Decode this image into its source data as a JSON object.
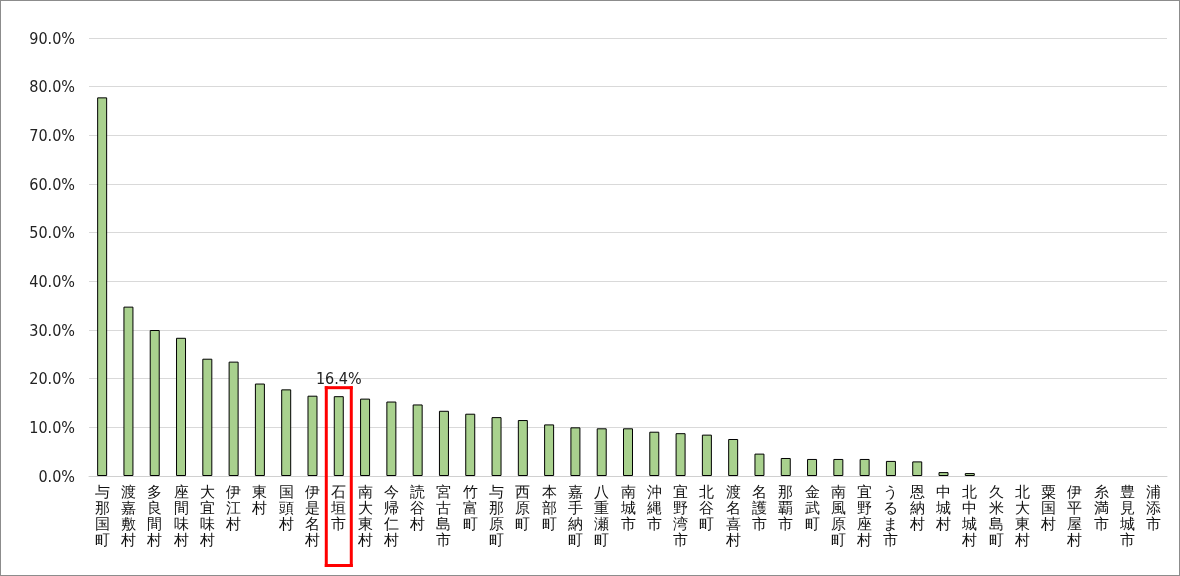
{
  "chart_data": {
    "type": "bar",
    "categories": [
      "与那国町",
      "渡嘉敷村",
      "多良間村",
      "座間味村",
      "大宜味村",
      "伊江村",
      "東村",
      "国頭村",
      "伊是名村",
      "石垣市",
      "南大東村",
      "今帰仁村",
      "読谷村",
      "宮古島市",
      "竹富町",
      "与那原町",
      "西原町",
      "本部町",
      "嘉手納町",
      "八重瀬町",
      "南城市",
      "沖縄市",
      "宜野湾市",
      "北谷町",
      "渡名喜村",
      "名護市",
      "那覇市",
      "金武町",
      "南風原町",
      "宜野座村",
      "うるま市",
      "恩納村",
      "中城村",
      "北中城村",
      "久米島町",
      "北大東村",
      "粟国村",
      "伊平屋村",
      "糸満市",
      "豊見城市",
      "浦添市"
    ],
    "values": [
      77.8,
      34.8,
      30.0,
      28.4,
      24.1,
      23.5,
      19.0,
      17.8,
      16.5,
      16.4,
      15.9,
      15.3,
      14.7,
      13.4,
      12.8,
      12.1,
      11.5,
      10.6,
      10.0,
      9.8,
      9.8,
      9.1,
      8.8,
      8.5,
      7.6,
      4.6,
      3.7,
      3.5,
      3.5,
      3.5,
      3.1,
      3.0,
      0.8,
      0.6,
      0,
      0,
      0,
      0,
      0,
      0,
      0
    ],
    "value_labels": [
      null,
      null,
      null,
      null,
      null,
      null,
      null,
      null,
      null,
      "16.4%",
      null,
      null,
      null,
      null,
      null,
      null,
      null,
      null,
      null,
      null,
      null,
      null,
      null,
      null,
      null,
      null,
      null,
      null,
      null,
      null,
      null,
      null,
      null,
      null,
      null,
      null,
      null,
      null,
      null,
      null,
      null
    ],
    "color": "#a9d18e",
    "ylim": [
      0,
      90
    ],
    "yticks": [
      {
        "value": 0,
        "label": "0.0%"
      },
      {
        "value": 10,
        "label": "10.0%"
      },
      {
        "value": 20,
        "label": "20.0%"
      },
      {
        "value": 30,
        "label": "30.0%"
      },
      {
        "value": 40,
        "label": "40.0%"
      },
      {
        "value": 50,
        "label": "50.0%"
      },
      {
        "value": 60,
        "label": "60.0%"
      },
      {
        "value": 70,
        "label": "70.0%"
      },
      {
        "value": 80,
        "label": "80.0%"
      },
      {
        "value": 90,
        "label": "90.0%"
      }
    ],
    "grid": "y"
  }
}
